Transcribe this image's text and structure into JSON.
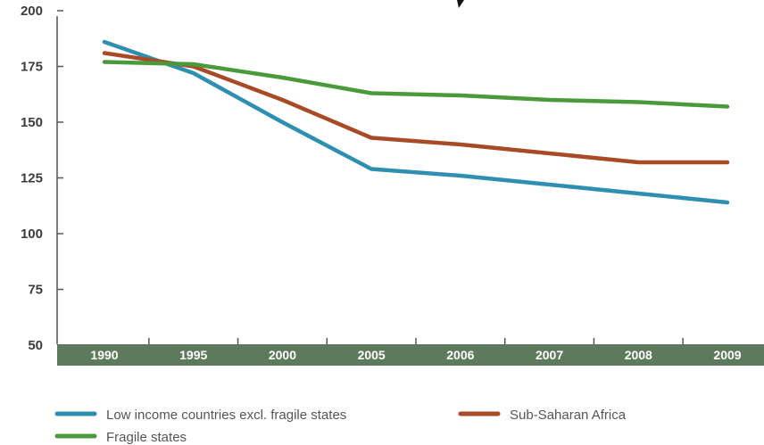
{
  "chart_data": {
    "type": "line",
    "categories": [
      "1990",
      "1995",
      "2000",
      "2005",
      "2006",
      "2007",
      "2008",
      "2009"
    ],
    "ylim": [
      50,
      200
    ],
    "yticks": [
      "50",
      "75",
      "100",
      "125",
      "150",
      "175",
      "200"
    ],
    "grid": false,
    "legend_placement": "bottom-left",
    "series": [
      {
        "name": "Low income countries excl. fragile states",
        "color": "#2e8fb0",
        "values": [
          186,
          172,
          150,
          129,
          126,
          122,
          118,
          114
        ]
      },
      {
        "name": "Sub-Saharan Africa",
        "color": "#a94a26",
        "values": [
          181,
          175,
          160,
          143,
          140,
          136,
          132,
          132
        ]
      },
      {
        "name": "Fragile states",
        "color": "#4a9a3c",
        "values": [
          177,
          176,
          170,
          163,
          162,
          160,
          159,
          157
        ]
      }
    ],
    "axis_band_color": "#5e7a5c"
  }
}
